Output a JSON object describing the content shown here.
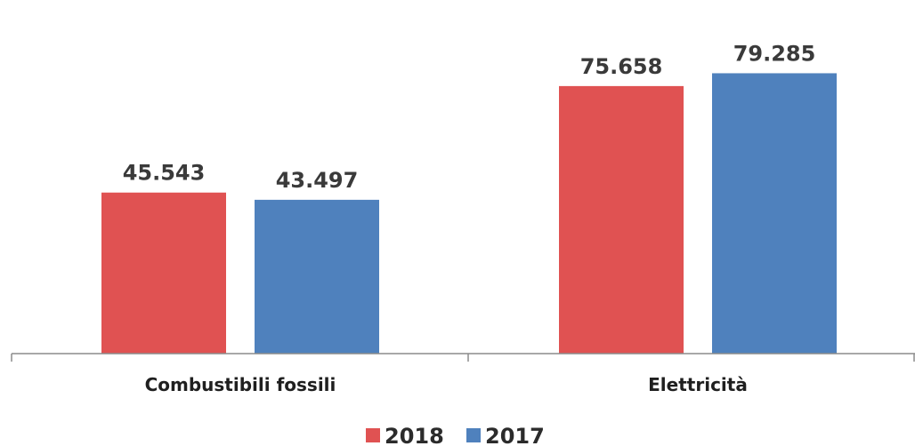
{
  "chart_data": {
    "type": "bar",
    "categories": [
      "Combustibili fossili",
      "Elettricità"
    ],
    "series": [
      {
        "name": "2018",
        "values": [
          45543,
          75658
        ],
        "labels": [
          "45.543",
          "75.658"
        ],
        "color": "#e05252"
      },
      {
        "name": "2017",
        "values": [
          43497,
          79285
        ],
        "labels": [
          "43.497",
          "79.285"
        ],
        "color": "#4f81bd"
      }
    ],
    "ylim": [
      0,
      100000
    ],
    "grid": false,
    "legend_position": "bottom"
  }
}
